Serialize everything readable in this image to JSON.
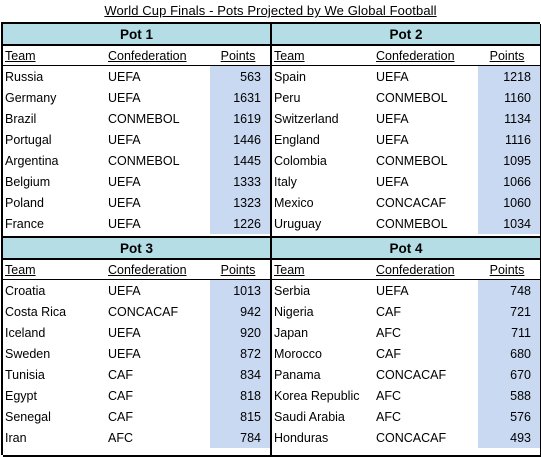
{
  "title": "World Cup Finals - Pots Projected by We Global Football",
  "columns": {
    "team": "Team",
    "confederation": "Confederation",
    "points": "Points"
  },
  "pots": [
    {
      "name": "Pot 1",
      "rows": [
        {
          "team": "Russia",
          "conf": "UEFA",
          "points": "563"
        },
        {
          "team": "Germany",
          "conf": "UEFA",
          "points": "1631"
        },
        {
          "team": "Brazil",
          "conf": "CONMEBOL",
          "points": "1619"
        },
        {
          "team": "Portugal",
          "conf": "UEFA",
          "points": "1446"
        },
        {
          "team": "Argentina",
          "conf": "CONMEBOL",
          "points": "1445"
        },
        {
          "team": "Belgium",
          "conf": "UEFA",
          "points": "1333"
        },
        {
          "team": "Poland",
          "conf": "UEFA",
          "points": "1323"
        },
        {
          "team": "France",
          "conf": "UEFA",
          "points": "1226"
        }
      ]
    },
    {
      "name": "Pot 2",
      "rows": [
        {
          "team": "Spain",
          "conf": "UEFA",
          "points": "1218"
        },
        {
          "team": "Peru",
          "conf": "CONMEBOL",
          "points": "1160"
        },
        {
          "team": "Switzerland",
          "conf": "UEFA",
          "points": "1134"
        },
        {
          "team": "England",
          "conf": "UEFA",
          "points": "1116"
        },
        {
          "team": "Colombia",
          "conf": "CONMEBOL",
          "points": "1095"
        },
        {
          "team": "Italy",
          "conf": "UEFA",
          "points": "1066"
        },
        {
          "team": "Mexico",
          "conf": "CONCACAF",
          "points": "1060"
        },
        {
          "team": "Uruguay",
          "conf": "CONMEBOL",
          "points": "1034"
        }
      ]
    },
    {
      "name": "Pot 3",
      "rows": [
        {
          "team": "Croatia",
          "conf": "UEFA",
          "points": "1013"
        },
        {
          "team": "Costa Rica",
          "conf": "CONCACAF",
          "points": "942"
        },
        {
          "team": "Iceland",
          "conf": "UEFA",
          "points": "920"
        },
        {
          "team": "Sweden",
          "conf": "UEFA",
          "points": "872"
        },
        {
          "team": "Tunisia",
          "conf": "CAF",
          "points": "834"
        },
        {
          "team": "Egypt",
          "conf": "CAF",
          "points": "818"
        },
        {
          "team": "Senegal",
          "conf": "CAF",
          "points": "815"
        },
        {
          "team": "Iran",
          "conf": "AFC",
          "points": "784"
        }
      ]
    },
    {
      "name": "Pot 4",
      "rows": [
        {
          "team": "Serbia",
          "conf": "UEFA",
          "points": "748"
        },
        {
          "team": "Nigeria",
          "conf": "CAF",
          "points": "721"
        },
        {
          "team": "Japan",
          "conf": "AFC",
          "points": "711"
        },
        {
          "team": "Morocco",
          "conf": "CAF",
          "points": "680"
        },
        {
          "team": "Panama",
          "conf": "CONCACAF",
          "points": "670"
        },
        {
          "team": "Korea Republic",
          "conf": "AFC",
          "points": "588"
        },
        {
          "team": "Saudi Arabia",
          "conf": "AFC",
          "points": "576"
        },
        {
          "team": "Honduras",
          "conf": "CONCACAF",
          "points": "493"
        }
      ]
    }
  ],
  "colors": {
    "header_bg": "#b4dde6",
    "points_bg": "#c9d9f2"
  }
}
